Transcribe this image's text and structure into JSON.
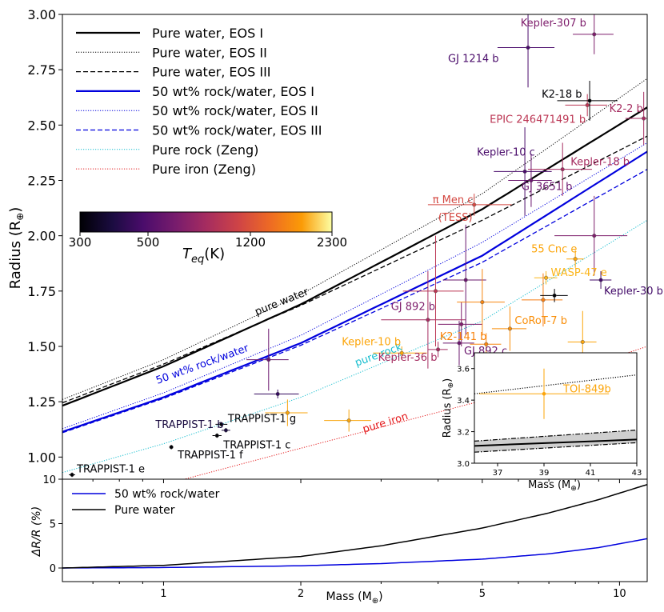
{
  "chart_data": [
    {
      "type": "line",
      "panel": "main",
      "xscale": "log",
      "xlim": [
        0.6,
        11.5
      ],
      "ylim": [
        0.9,
        3.0
      ],
      "xlabel": "",
      "ylabel": "Radius (R⊕)",
      "x_ticks": [
        1,
        2,
        5,
        10
      ],
      "y_ticks": [
        1.0,
        1.25,
        1.5,
        1.75,
        2.0,
        2.25,
        2.5,
        2.75,
        3.0
      ],
      "y_tick_labels": [
        "1.00",
        "1.25",
        "1.50",
        "1.75",
        "2.00",
        "2.25",
        "2.50",
        "2.75",
        "3.00"
      ],
      "legend_position": "top-left",
      "series": [
        {
          "name": "Pure water, EOS I",
          "color": "#000000",
          "style": "solid",
          "width": 2.2,
          "x": [
            0.6,
            1,
            2,
            5,
            11.5
          ],
          "y": [
            1.232,
            1.41,
            1.69,
            2.12,
            2.58
          ]
        },
        {
          "name": "Pure water, EOS II",
          "color": "#000000",
          "style": "dotted",
          "width": 1,
          "x": [
            0.6,
            1,
            2,
            5,
            11.5
          ],
          "y": [
            1.26,
            1.44,
            1.735,
            2.19,
            2.71
          ]
        },
        {
          "name": "Pure water, EOS III",
          "color": "#000000",
          "style": "dashed",
          "width": 1.3,
          "x": [
            0.6,
            1,
            2,
            5,
            11.5
          ],
          "y": [
            1.245,
            1.42,
            1.685,
            2.07,
            2.45
          ]
        },
        {
          "name": "50 wt% rock/water, EOS I",
          "color": "#0000dd",
          "style": "solid",
          "width": 2.2,
          "x": [
            0.6,
            1,
            2,
            5,
            11.5
          ],
          "y": [
            1.114,
            1.27,
            1.515,
            1.91,
            2.38
          ]
        },
        {
          "name": "50 wt% rock/water, EOS II",
          "color": "#0000dd",
          "style": "dotted",
          "width": 1,
          "x": [
            0.6,
            1,
            2,
            5,
            11.5
          ],
          "y": [
            1.128,
            1.29,
            1.55,
            1.97,
            2.42
          ]
        },
        {
          "name": "50 wt% rock/water, EOS III",
          "color": "#0000dd",
          "style": "dashed",
          "width": 1.3,
          "x": [
            0.6,
            1,
            2,
            5,
            11.5
          ],
          "y": [
            1.11,
            1.265,
            1.505,
            1.88,
            2.3
          ]
        },
        {
          "name": "Pure rock (Zeng)",
          "color": "#17becf",
          "style": "dotted",
          "width": 1,
          "x": [
            0.6,
            1,
            2,
            5,
            11.5
          ],
          "y": [
            0.93,
            1.06,
            1.27,
            1.615,
            2.07
          ]
        },
        {
          "name": "Pure iron (Zeng)",
          "color": "#e41a1c",
          "style": "dotted",
          "width": 1,
          "x": [
            0.6,
            1,
            2,
            5,
            11.5
          ],
          "y": [
            0.76,
            0.875,
            1.04,
            1.255,
            1.5
          ]
        }
      ],
      "curve_annotations": [
        {
          "text": "pure water",
          "color": "#000000",
          "x": 1.6,
          "y": 1.64,
          "angle": -22
        },
        {
          "text": "50 wt% rock/water",
          "color": "#0000dd",
          "x": 0.97,
          "y": 1.33,
          "angle": -20
        },
        {
          "text": "pure rock",
          "color": "#17becf",
          "x": 2.65,
          "y": 1.41,
          "angle": -20
        },
        {
          "text": "pure iron",
          "color": "#e41a1c",
          "x": 2.75,
          "y": 1.11,
          "angle": -17
        }
      ],
      "colorbar": {
        "label": "T_eq(K)",
        "label_main": "T",
        "label_sub": "eq",
        "label_tail": "(K)",
        "ticks": [
          "300",
          "500",
          "1200",
          "2300"
        ],
        "colormap": "inferno"
      },
      "planets": [
        {
          "name": "TRAPPIST-1 e",
          "x": 0.63,
          "y": 0.92,
          "xerr": 0.01,
          "yerr": 0.01,
          "color": "#000004",
          "label_dx": 6,
          "label_dy": -3
        },
        {
          "name": "TRAPPIST-1 f",
          "x": 1.04,
          "y": 1.045,
          "xerr": 0.01,
          "yerr": 0.01,
          "color": "#000004",
          "label_dx": 8,
          "label_dy": 14
        },
        {
          "name": "TRAPPIST-1 c",
          "x": 1.31,
          "y": 1.097,
          "xerr": 0.03,
          "yerr": 0.01,
          "color": "#000004",
          "label_dx": 8,
          "label_dy": 16
        },
        {
          "name": "TRAPPIST-1 g",
          "x": 1.34,
          "y": 1.148,
          "xerr": 0.04,
          "yerr": 0.01,
          "color": "#000004",
          "label_dx": 8,
          "label_dy": -3
        },
        {
          "name": "TRAPPIST-1 b",
          "x": 1.37,
          "y": 1.121,
          "xerr": 0.03,
          "yerr": 0.01,
          "color": "#1a0b40",
          "label_dx": -88,
          "label_dy": -3
        },
        {
          "name": "",
          "x": 1.78,
          "y": 1.285,
          "xerr": 0.2,
          "yerr": 0.02,
          "color": "#330a5f",
          "label_dx": 0,
          "label_dy": 0
        },
        {
          "name": "",
          "x": 1.7,
          "y": 1.44,
          "xerr": 0.18,
          "yerr": 0.14,
          "color": "#6a176e",
          "label_dx": 0,
          "label_dy": 0
        },
        {
          "name": "",
          "x": 1.87,
          "y": 1.2,
          "xerr": 0.2,
          "yerr": 0.06,
          "color": "#f8a40d",
          "label_dx": 0,
          "label_dy": 0
        },
        {
          "name": "",
          "x": 2.55,
          "y": 1.165,
          "xerr": 0.3,
          "yerr": 0.05,
          "color": "#f8a40d",
          "label_dx": 0,
          "label_dy": 0
        },
        {
          "name": "Kepler-10 b",
          "x": 3.33,
          "y": 1.47,
          "xerr": 0.45,
          "yerr": 0.03,
          "color": "#fca50a",
          "label_dx": -75,
          "label_dy": -10
        },
        {
          "name": "Kepler-36 b",
          "x": 4.0,
          "y": 1.486,
          "xerr": 0.2,
          "yerr": 0.035,
          "color": "#a52c60",
          "label_dx": -75,
          "label_dy": 14
        },
        {
          "name": "K2-141 b",
          "x": 5.1,
          "y": 1.51,
          "xerr": 0.4,
          "yerr": 0.05,
          "color": "#f8850f",
          "label_dx": -58,
          "label_dy": -5
        },
        {
          "name": "GJ 892 c",
          "x": 4.45,
          "y": 1.515,
          "xerr": 0.35,
          "yerr": 0.1,
          "color": "#6a176e",
          "label_dx": 6,
          "label_dy": 14
        },
        {
          "name": "GJ 892 b",
          "x": 4.5,
          "y": 1.6,
          "xerr": 0.5,
          "yerr": 0.1,
          "color": "#7e1e6c",
          "label_dx": -88,
          "label_dy": -18
        },
        {
          "name": "",
          "x": 3.8,
          "y": 1.62,
          "xerr": 0.8,
          "yerr": 0.22,
          "color": "#a52c60",
          "label_dx": 0,
          "label_dy": 0
        },
        {
          "name": "",
          "x": 3.95,
          "y": 1.75,
          "xerr": 0.6,
          "yerr": 0.25,
          "color": "#bc3754",
          "label_dx": 0,
          "label_dy": 0
        },
        {
          "name": "",
          "x": 4.6,
          "y": 1.8,
          "xerr": 0.5,
          "yerr": 0.25,
          "color": "#6a176e",
          "label_dx": 0,
          "label_dy": 0
        },
        {
          "name": "",
          "x": 5.0,
          "y": 1.7,
          "xerr": 0.6,
          "yerr": 0.15,
          "color": "#f8850f",
          "label_dx": 0,
          "label_dy": 0
        },
        {
          "name": "CoRoT-7 b",
          "x": 5.75,
          "y": 1.58,
          "xerr": 0.5,
          "yerr": 0.1,
          "color": "#f98e09",
          "label_dx": 6,
          "label_dy": -6
        },
        {
          "name": "π Men c",
          "x": 4.8,
          "y": 2.14,
          "xerr": 1.0,
          "yerr": 0.05,
          "color": "#d44842",
          "label_dx": -52,
          "label_dy": -2
        },
        {
          "name": "WASP-47 e",
          "x": 6.9,
          "y": 1.81,
          "xerr": 0.4,
          "yerr": 0.03,
          "color": "#fcb519",
          "label_dx": 6,
          "label_dy": -2
        },
        {
          "name": "",
          "x": 6.8,
          "y": 1.71,
          "xerr": 0.7,
          "yerr": 0.12,
          "color": "#f67e14",
          "label_dx": 0,
          "label_dy": 0
        },
        {
          "name": "",
          "x": 7.2,
          "y": 1.73,
          "xerr": 0.5,
          "yerr": 0.03,
          "color": "#000004",
          "label_dx": 0,
          "label_dy": 0
        },
        {
          "name": "55 Cnc e",
          "x": 8.0,
          "y": 1.895,
          "xerr": 0.35,
          "yerr": 0.04,
          "color": "#fca50a",
          "label_dx": -55,
          "label_dy": -8
        },
        {
          "name": "",
          "x": 8.3,
          "y": 1.52,
          "xerr": 0.6,
          "yerr": 0.14,
          "color": "#fca50a",
          "label_dx": 0,
          "label_dy": 0
        },
        {
          "name": "Kepler-30 b",
          "x": 9.1,
          "y": 1.8,
          "xerr": 0.5,
          "yerr": 0.04,
          "color": "#420a68",
          "label_dx": 4,
          "label_dy": 18
        },
        {
          "name": "",
          "x": 8.8,
          "y": 2.0,
          "xerr": 1.6,
          "yerr": 0.18,
          "color": "#7e1e6c",
          "label_dx": 0,
          "label_dy": 0
        },
        {
          "name": "GJ 3651 b",
          "x": 6.4,
          "y": 2.25,
          "xerr": 0.7,
          "yerr": 0.12,
          "color": "#6a176e",
          "label_dx": -12,
          "label_dy": 12
        },
        {
          "name": "Kepler-10 c",
          "x": 6.2,
          "y": 2.29,
          "xerr": 0.9,
          "yerr": 0.2,
          "color": "#4a0c6b",
          "label_dx": -60,
          "label_dy": -20
        },
        {
          "name": "Kepler-18 b",
          "x": 7.5,
          "y": 2.3,
          "xerr": 1.2,
          "yerr": 0.12,
          "color": "#a52c60",
          "label_dx": 10,
          "label_dy": -5
        },
        {
          "name": "EPIC 246471491 b",
          "x": 8.5,
          "y": 2.59,
          "xerr": 0.9,
          "yerr": 0.05,
          "color": "#bc3754",
          "label_dx": -122,
          "label_dy": 22
        },
        {
          "name": "K2-18 b",
          "x": 8.6,
          "y": 2.61,
          "xerr": 1.3,
          "yerr": 0.09,
          "color": "#000004",
          "label_dx": -60,
          "label_dy": -4
        },
        {
          "name": "K2-2 b",
          "x": 11.3,
          "y": 2.53,
          "xerr": 1.0,
          "yerr": 0.12,
          "color": "#a52c60",
          "label_dx": -43,
          "label_dy": -8
        },
        {
          "name": "GJ 1214 b",
          "x": 6.3,
          "y": 2.85,
          "xerr": 0.9,
          "yerr": 0.18,
          "color": "#4a0c6b",
          "label_dx": -100,
          "label_dy": 18
        },
        {
          "name": "Kepler-307 b",
          "x": 8.8,
          "y": 2.91,
          "xerr": 0.9,
          "yerr": 0.09,
          "color": "#7e1e6c",
          "label_dx": -92,
          "label_dy": -10
        }
      ],
      "extra_labels": [
        {
          "text": "(TESS)",
          "x": 4.8,
          "y": 2.14,
          "color": "#d44842",
          "dx": -45,
          "dy": 20
        }
      ]
    },
    {
      "type": "line",
      "panel": "inset",
      "xlim": [
        36,
        43
      ],
      "ylim": [
        3.0,
        3.7
      ],
      "xlabel": "Mass (M⊕)",
      "ylabel": "Radius (R⊕)",
      "x_ticks": [
        37,
        39,
        41,
        43
      ],
      "y_ticks": [
        3.0,
        3.2,
        3.4,
        3.6
      ],
      "y_tick_labels": [
        "3.0",
        "3.2",
        "3.4",
        "3.6"
      ],
      "series": [
        {
          "name": "EOS II",
          "color": "#000000",
          "style": "dotted",
          "x": [
            36,
            43
          ],
          "y": [
            3.44,
            3.56
          ]
        },
        {
          "name": "EOS I",
          "color": "#000000",
          "style": "solid",
          "x": [
            36,
            43
          ],
          "y": [
            3.11,
            3.15
          ]
        },
        {
          "name": "EOS I upper",
          "color": "#000000",
          "style": "dashdot",
          "x": [
            36,
            43
          ],
          "y": [
            3.14,
            3.21
          ]
        },
        {
          "name": "EOS I lower",
          "color": "#000000",
          "style": "dashdot",
          "x": [
            36,
            43
          ],
          "y": [
            3.07,
            3.13
          ]
        }
      ],
      "points": [
        {
          "name": "TOI-849b",
          "x": 39.0,
          "y": 3.44,
          "xerr": 2.8,
          "yerr": 0.16,
          "color": "#fca50a"
        }
      ]
    },
    {
      "type": "line",
      "panel": "bottom",
      "xscale": "log",
      "xlim": [
        0.6,
        11.5
      ],
      "ylim": [
        0,
        10
      ],
      "xlabel": "Mass (M⊕)",
      "ylabel": "ΔR/R (%)",
      "x_ticks": [
        1,
        2,
        5,
        10
      ],
      "x_tick_labels": [
        "1",
        "2",
        "5",
        "10"
      ],
      "y_ticks": [
        0,
        5,
        10
      ],
      "y_tick_labels": [
        "0",
        "5",
        "10"
      ],
      "series": [
        {
          "name": "50 wt% rock/water",
          "color": "#0000dd",
          "x": [
            0.6,
            1,
            2,
            3,
            5,
            7,
            9,
            11.5
          ],
          "y": [
            0.0,
            0.05,
            0.25,
            0.5,
            1.0,
            1.6,
            2.3,
            3.3
          ]
        },
        {
          "name": "Pure water",
          "color": "#000000",
          "x": [
            0.6,
            1,
            2,
            3,
            5,
            7,
            9,
            11.5
          ],
          "y": [
            0.0,
            0.3,
            1.3,
            2.5,
            4.5,
            6.2,
            7.7,
            9.4
          ]
        }
      ]
    }
  ]
}
